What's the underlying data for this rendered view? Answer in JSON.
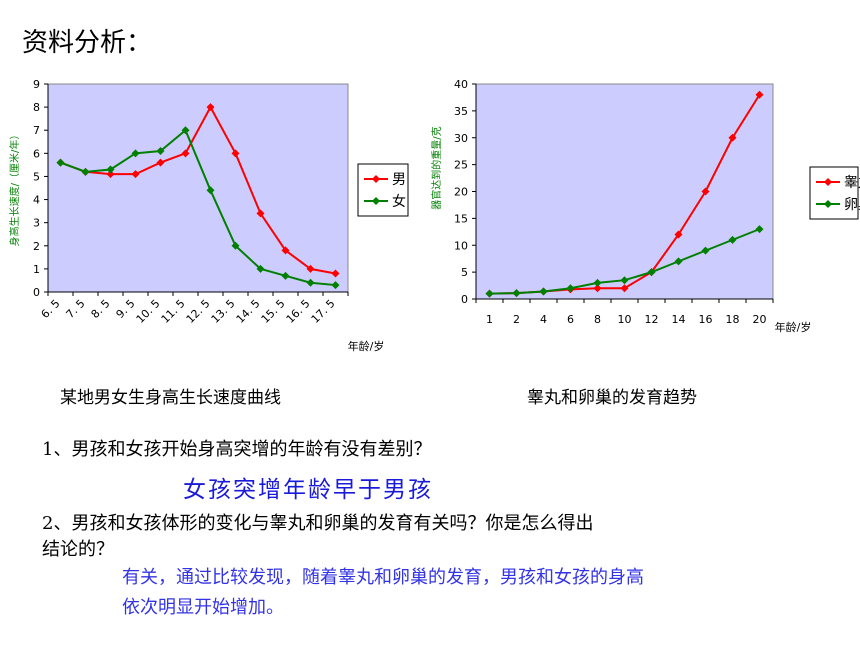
{
  "heading": "资料分析：",
  "chart_data": [
    {
      "type": "line",
      "title": "某地男女生身高生长速度曲线",
      "xlabel": "年龄/岁",
      "ylabel": "身高生长速度/（厘米/年）",
      "categories": [
        "6.5",
        "7.5",
        "8.5",
        "9.5",
        "10.5",
        "11.5",
        "12.5",
        "13.5",
        "14.5",
        "15.5",
        "16.5",
        "17.5"
      ],
      "category_tick_labels": [
        "6. 5",
        "7. 5",
        "8. 5",
        "9. 5",
        "10. 5",
        "11. 5",
        "12. 5",
        "13. 5",
        "14. 5",
        "15. 5",
        "16. 5",
        "17. 5"
      ],
      "ylim": [
        0,
        9
      ],
      "yticks": [
        "0",
        "1",
        "2",
        "3",
        "4",
        "5",
        "6",
        "7",
        "8",
        "9"
      ],
      "series": [
        {
          "name": "男",
          "color": "#ff0000",
          "values": [
            5.6,
            5.2,
            5.1,
            5.1,
            5.6,
            6.0,
            8.0,
            6.0,
            3.4,
            1.8,
            1.0,
            0.8
          ]
        },
        {
          "name": "女",
          "color": "#008000",
          "values": [
            5.6,
            5.2,
            5.3,
            6.0,
            6.1,
            7.0,
            4.4,
            2.0,
            1.0,
            0.7,
            0.4,
            0.3
          ]
        }
      ],
      "plot_background": "#ccccff",
      "legend_position": "right"
    },
    {
      "type": "line",
      "title": "睾丸和卵巢的发育趋势",
      "xlabel": "年龄/岁",
      "ylabel": "器官达到的重量/克",
      "categories": [
        "1",
        "2",
        "4",
        "6",
        "8",
        "10",
        "12",
        "14",
        "16",
        "18",
        "20"
      ],
      "ylim": [
        0,
        40
      ],
      "yticks": [
        "0",
        "5",
        "10",
        "15",
        "20",
        "25",
        "30",
        "35",
        "40"
      ],
      "series": [
        {
          "name": "睾丸",
          "color": "#ff0000",
          "values": [
            1,
            1.1,
            1.4,
            1.8,
            2,
            2,
            5,
            12,
            20,
            30,
            38
          ]
        },
        {
          "name": "卵巢",
          "color": "#008000",
          "values": [
            1,
            1.1,
            1.4,
            2,
            3,
            3.5,
            5,
            7,
            9,
            11,
            13
          ]
        }
      ],
      "plot_background": "#ccccff",
      "legend_position": "right"
    }
  ],
  "questions": {
    "q1": "1、男孩和女孩开始身高突增的年龄有没有差别？",
    "a1": "女孩突增年龄早于男孩",
    "q2_line1": "2、男孩和女孩体形的变化与睾丸和卵巢的发育有关吗？你是怎么得出",
    "q2_line2": "结论的？",
    "a2_line1": "有关，通过比较发现，随着睾丸和卵巢的发育，男孩和女孩的身高",
    "a2_line2": "依次明显开始增加。"
  }
}
